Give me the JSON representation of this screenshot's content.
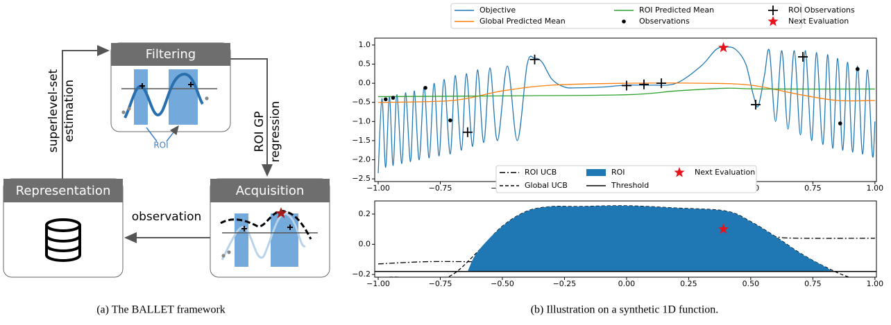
{
  "diagram": {
    "nodes": [
      {
        "label": "Filtering"
      },
      {
        "label": "Acquisition"
      },
      {
        "label": "Representation"
      }
    ],
    "edges": [
      {
        "lines": [
          "superlevel-set",
          "estimation"
        ]
      },
      {
        "lines": [
          "ROI GP",
          "regression"
        ]
      },
      {
        "lines": [
          "observation"
        ]
      }
    ],
    "roi_label": "ROI",
    "caption": "(a) The BALLET framework"
  },
  "caption_b": "(b) Illustration on a synthetic 1D function.",
  "chart_data": [
    {
      "type": "line",
      "xlim": [
        -1.014,
        1.006
      ],
      "ylim": [
        -2.57,
        1.18
      ],
      "xticks": [
        {
          "value": -1,
          "label": "−1.00"
        },
        {
          "value": -0.75,
          "label": "−0.75"
        },
        {
          "value": -0.5,
          "label": "−0.50"
        },
        {
          "value": -0.25,
          "label": "−0.25"
        },
        {
          "value": 0,
          "label": "0.00"
        },
        {
          "value": 0.25,
          "label": "0.25"
        },
        {
          "value": 0.5,
          "label": "0.50"
        },
        {
          "value": 0.75,
          "label": "0.75"
        },
        {
          "value": 1,
          "label": "1.00"
        }
      ],
      "yticks": [
        {
          "value": 1,
          "label": "1.0"
        },
        {
          "value": 0.5,
          "label": "0.5"
        },
        {
          "value": 0,
          "label": "0.0"
        },
        {
          "value": -0.5,
          "label": "−0.5"
        },
        {
          "value": -1,
          "label": "−1.0"
        },
        {
          "value": -1.5,
          "label": "−1.5"
        },
        {
          "value": -2,
          "label": "−2.0"
        },
        {
          "value": -2.5,
          "label": "−2.5"
        }
      ],
      "series": [
        {
          "name": "Objective",
          "color": "#1f77b4",
          "style": "solid",
          "x": [
            -1.0,
            -0.985,
            -0.97,
            -0.955,
            -0.94,
            -0.925,
            -0.905,
            -0.89,
            -0.87,
            -0.855,
            -0.835,
            -0.815,
            -0.795,
            -0.775,
            -0.755,
            -0.735,
            -0.71,
            -0.69,
            -0.665,
            -0.645,
            -0.62,
            -0.6,
            -0.575,
            -0.55,
            -0.52,
            -0.48,
            -0.44,
            -0.4,
            -0.37,
            -0.34,
            -0.3,
            -0.25,
            -0.2,
            -0.1,
            0.0,
            0.1,
            0.2,
            0.3,
            0.36,
            0.4,
            0.44,
            0.48,
            0.51,
            0.53,
            0.555,
            0.575,
            0.6,
            0.625,
            0.65,
            0.675,
            0.7,
            0.72,
            0.745,
            0.765,
            0.79,
            0.81,
            0.83,
            0.85,
            0.87,
            0.89,
            0.91,
            0.93,
            0.95,
            0.97,
            0.99,
            1.0
          ],
          "values": [
            -2.35,
            -0.4,
            -2.2,
            -0.35,
            -2.15,
            -0.3,
            -2.1,
            -0.25,
            -2.05,
            -0.2,
            -2.0,
            -0.1,
            -1.95,
            0.0,
            -1.9,
            0.1,
            -1.85,
            0.2,
            -1.75,
            0.25,
            -1.65,
            0.35,
            -1.55,
            0.4,
            -1.5,
            0.45,
            -1.5,
            0.5,
            0.65,
            0.55,
            0.1,
            -0.1,
            -0.12,
            -0.1,
            -0.05,
            -0.05,
            0.0,
            0.45,
            0.88,
            0.95,
            0.88,
            0.5,
            -0.3,
            -0.6,
            0.2,
            0.85,
            -1.0,
            0.85,
            -1.2,
            0.85,
            -1.35,
            0.85,
            -1.5,
            0.8,
            -1.6,
            0.75,
            -1.7,
            0.65,
            -1.75,
            0.55,
            -1.8,
            0.45,
            -1.85,
            0.35,
            -1.9,
            -1.0
          ]
        },
        {
          "name": "Global Predicted Mean",
          "color": "#ff7f0e",
          "style": "solid",
          "x": [
            -1.0,
            -0.7,
            -0.5,
            -0.3,
            0.0,
            0.3,
            0.5,
            0.7,
            0.85,
            1.0
          ],
          "values": [
            -0.5,
            -0.45,
            -0.2,
            -0.05,
            0.0,
            0.0,
            -0.05,
            -0.3,
            -0.45,
            -0.45
          ]
        },
        {
          "name": "ROI Predicted Mean",
          "color": "#2ca02c",
          "style": "solid",
          "x": [
            -1.0,
            -0.5,
            0.0,
            0.2,
            0.4,
            0.55,
            1.0
          ],
          "values": [
            -0.35,
            -0.33,
            -0.3,
            -0.2,
            -0.13,
            -0.15,
            -0.15
          ]
        },
        {
          "name": "Observations",
          "color": "#000000",
          "marker": "dot",
          "x": [
            -0.97,
            -0.94,
            -0.81,
            -0.71,
            0.86,
            0.93
          ],
          "values": [
            -0.42,
            -0.38,
            -0.12,
            -0.97,
            -1.05,
            0.37
          ]
        },
        {
          "name": "ROI Observations",
          "color": "#000000",
          "marker": "plus",
          "x": [
            -0.64,
            -0.37,
            0.0,
            0.07,
            0.14,
            0.52,
            0.71
          ],
          "values": [
            -1.28,
            0.62,
            -0.06,
            -0.03,
            0.0,
            -0.56,
            0.69
          ]
        },
        {
          "name": "Next Evaluation",
          "color": "#e8121b",
          "marker": "star",
          "x": [
            0.39
          ],
          "values": [
            0.93
          ]
        }
      ]
    },
    {
      "type": "line",
      "xlim": [
        -1.014,
        1.006
      ],
      "ylim": [
        -0.218,
        0.287
      ],
      "xticks": [
        {
          "value": -1,
          "label": "−1.00"
        },
        {
          "value": -0.75,
          "label": "−0.75"
        },
        {
          "value": -0.5,
          "label": "−0.50"
        },
        {
          "value": -0.25,
          "label": "−0.25"
        },
        {
          "value": 0,
          "label": "0.00"
        },
        {
          "value": 0.25,
          "label": "0.25"
        },
        {
          "value": 0.5,
          "label": "0.50"
        },
        {
          "value": 0.75,
          "label": "0.75"
        },
        {
          "value": 1,
          "label": "1.00"
        }
      ],
      "yticks": [
        {
          "value": 0.2,
          "label": "0.2"
        },
        {
          "value": 0,
          "label": "0.0"
        },
        {
          "value": -0.2,
          "label": "−0.2"
        }
      ],
      "series": [
        {
          "name": "ROI UCB",
          "color": "#000000",
          "style": "dashdot",
          "x": [
            -1.0,
            -0.8,
            -0.6,
            -0.4,
            -0.2,
            0.0,
            0.2,
            0.3,
            0.4,
            0.5,
            0.6,
            0.7,
            1.0
          ],
          "values": [
            -0.13,
            -0.115,
            -0.115,
            -0.11,
            -0.105,
            -0.09,
            -0.05,
            0.05,
            0.1,
            0.09,
            0.05,
            0.04,
            0.04
          ]
        },
        {
          "name": "Global UCB",
          "color": "#000000",
          "style": "dashed",
          "x": [
            -1.0,
            -0.9,
            -0.8,
            -0.7,
            -0.6,
            -0.5,
            -0.4,
            -0.3,
            -0.2,
            0.0,
            0.2,
            0.4,
            0.5,
            0.6,
            0.7,
            0.8,
            0.9,
            1.0
          ],
          "values": [
            -0.22,
            -0.22,
            -0.25,
            -0.2,
            -0.05,
            0.12,
            0.22,
            0.25,
            0.25,
            0.255,
            0.24,
            0.22,
            0.15,
            0.05,
            -0.06,
            -0.15,
            -0.22,
            -0.25
          ]
        },
        {
          "name": "ROI",
          "color": "#1f77b4",
          "style": "area",
          "x": [
            -0.64,
            -0.6,
            -0.5,
            -0.4,
            -0.3,
            -0.2,
            0.0,
            0.2,
            0.4,
            0.5,
            0.6,
            0.7,
            0.8,
            0.83
          ],
          "values": [
            -0.18,
            -0.05,
            0.12,
            0.22,
            0.25,
            0.25,
            0.255,
            0.24,
            0.22,
            0.15,
            0.05,
            -0.06,
            -0.15,
            -0.18
          ]
        },
        {
          "name": "Threshold",
          "color": "#000000",
          "style": "hline",
          "values": [
            -0.18
          ]
        },
        {
          "name": "Next Evaluation",
          "color": "#e8121b",
          "marker": "star",
          "x": [
            0.39
          ],
          "values": [
            0.1
          ]
        }
      ]
    }
  ]
}
